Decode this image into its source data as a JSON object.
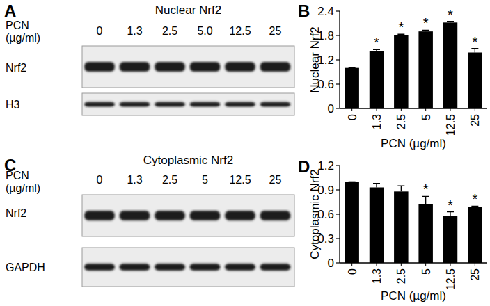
{
  "chart_data": [
    {
      "type": "bar",
      "annotations": [
        "B"
      ],
      "x_label": "PCN (µg/ml)",
      "y_label": "Nuclear Nrf2",
      "categories": [
        "0",
        "1.3",
        "2.5",
        "5",
        "12.5",
        "25"
      ],
      "values": [
        1.0,
        1.42,
        1.81,
        1.9,
        2.12,
        1.38
      ],
      "errors": [
        0,
        0.03,
        0.02,
        0.03,
        0.03,
        0.1
      ],
      "significance": [
        null,
        "*",
        "*",
        "*",
        "*",
        "*"
      ],
      "color": "#000000",
      "ylim": [
        0,
        2.4
      ],
      "yticks": [
        0,
        0.6,
        1.2,
        1.8,
        2.4
      ],
      "grid": false
    },
    {
      "type": "bar",
      "annotations": [
        "D"
      ],
      "x_label": "PCN (µg/ml)",
      "y_label": "Cytoplasmic Nrf2",
      "categories": [
        "0",
        "1.3",
        "2.5",
        "5",
        "12.5",
        "25"
      ],
      "values": [
        1.0,
        0.93,
        0.88,
        0.72,
        0.58,
        0.69
      ],
      "errors": [
        0,
        0.05,
        0.07,
        0.1,
        0.05,
        0.01
      ],
      "significance": [
        null,
        null,
        null,
        "*",
        "*",
        "*"
      ],
      "color": "#000000",
      "ylim": [
        0,
        1.2
      ],
      "yticks": [
        0,
        0.3,
        0.6,
        0.9,
        1.2
      ],
      "grid": false
    }
  ],
  "blots": [
    {
      "panel": "A",
      "title": "Nuclear Nrf2",
      "lane_header": [
        "PCN",
        "(µg/ml)"
      ],
      "lanes": [
        "0",
        "1.3",
        "2.5",
        "5.0",
        "12.5",
        "25"
      ],
      "rows": [
        "Nrf2",
        "H3"
      ]
    },
    {
      "panel": "C",
      "title": "Cytoplasmic Nrf2",
      "lane_header": [
        "PCN",
        "(µg/ml)"
      ],
      "lanes": [
        "0",
        "1.3",
        "2.5",
        "5",
        "12.5",
        "25"
      ],
      "rows": [
        "Nrf2",
        "GAPDH"
      ]
    }
  ]
}
